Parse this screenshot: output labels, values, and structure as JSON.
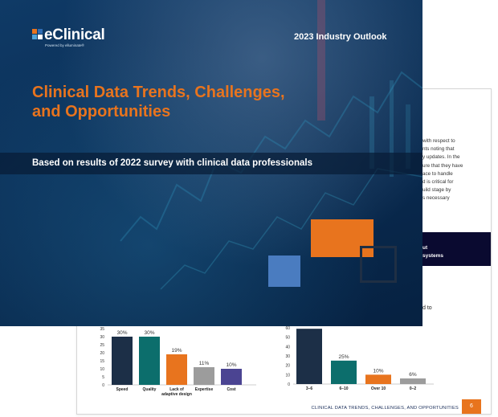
{
  "cover": {
    "logo_text": "eClinical",
    "logo_tagline": "Powered by elluminate®",
    "outlook_label": "2023 Industry Outlook",
    "title_line1": "Clinical Data Trends, Challenges,",
    "title_line2": "and Opportunities",
    "subtitle": "Based on results of 2022 survey with clinical data professionals",
    "colors": {
      "accent_orange": "#e8741e",
      "navy": "#0a2e55",
      "blue_square": "#4a7cc0"
    }
  },
  "back_page": {
    "text_lines": [
      "with respect to",
      "nts noting that",
      "y updates. In the",
      "ure that they have",
      "ace to handle",
      "d is critical for",
      "uild stage by",
      "s necessary"
    ],
    "dark_block_line1": "ut",
    "dark_block_line2": "systems",
    "fragment_text": "d to",
    "footer_text": "CLINICAL DATA TRENDS, CHALLENGES, AND OPPORTUNITIES",
    "page_number": "6"
  },
  "chart_data": [
    {
      "type": "bar",
      "categories": [
        "Speed",
        "Quality",
        "Lack of adaptive design",
        "Expertise",
        "Cost"
      ],
      "values": [
        30,
        30,
        19,
        11,
        10
      ],
      "value_labels": [
        "30%",
        "30%",
        "19%",
        "11%",
        "10%"
      ],
      "colors": [
        "#1c2f47",
        "#0c6e6c",
        "#e8741e",
        "#9c9c9c",
        "#4b4492"
      ],
      "ylim": [
        0,
        35
      ],
      "yticks": [
        0,
        5,
        10,
        15,
        20,
        25,
        30,
        35
      ]
    },
    {
      "type": "bar",
      "categories": [
        "3–6",
        "6–10",
        "Over 10",
        "0–2"
      ],
      "values": [
        59,
        25,
        10,
        6
      ],
      "value_labels": [
        "",
        "25%",
        "10%",
        "6%"
      ],
      "colors": [
        "#1c2f47",
        "#0c6e6c",
        "#e8741e",
        "#9c9c9c"
      ],
      "ylim": [
        0,
        60
      ],
      "yticks": [
        0,
        10,
        20,
        30,
        40,
        50,
        60
      ]
    }
  ]
}
